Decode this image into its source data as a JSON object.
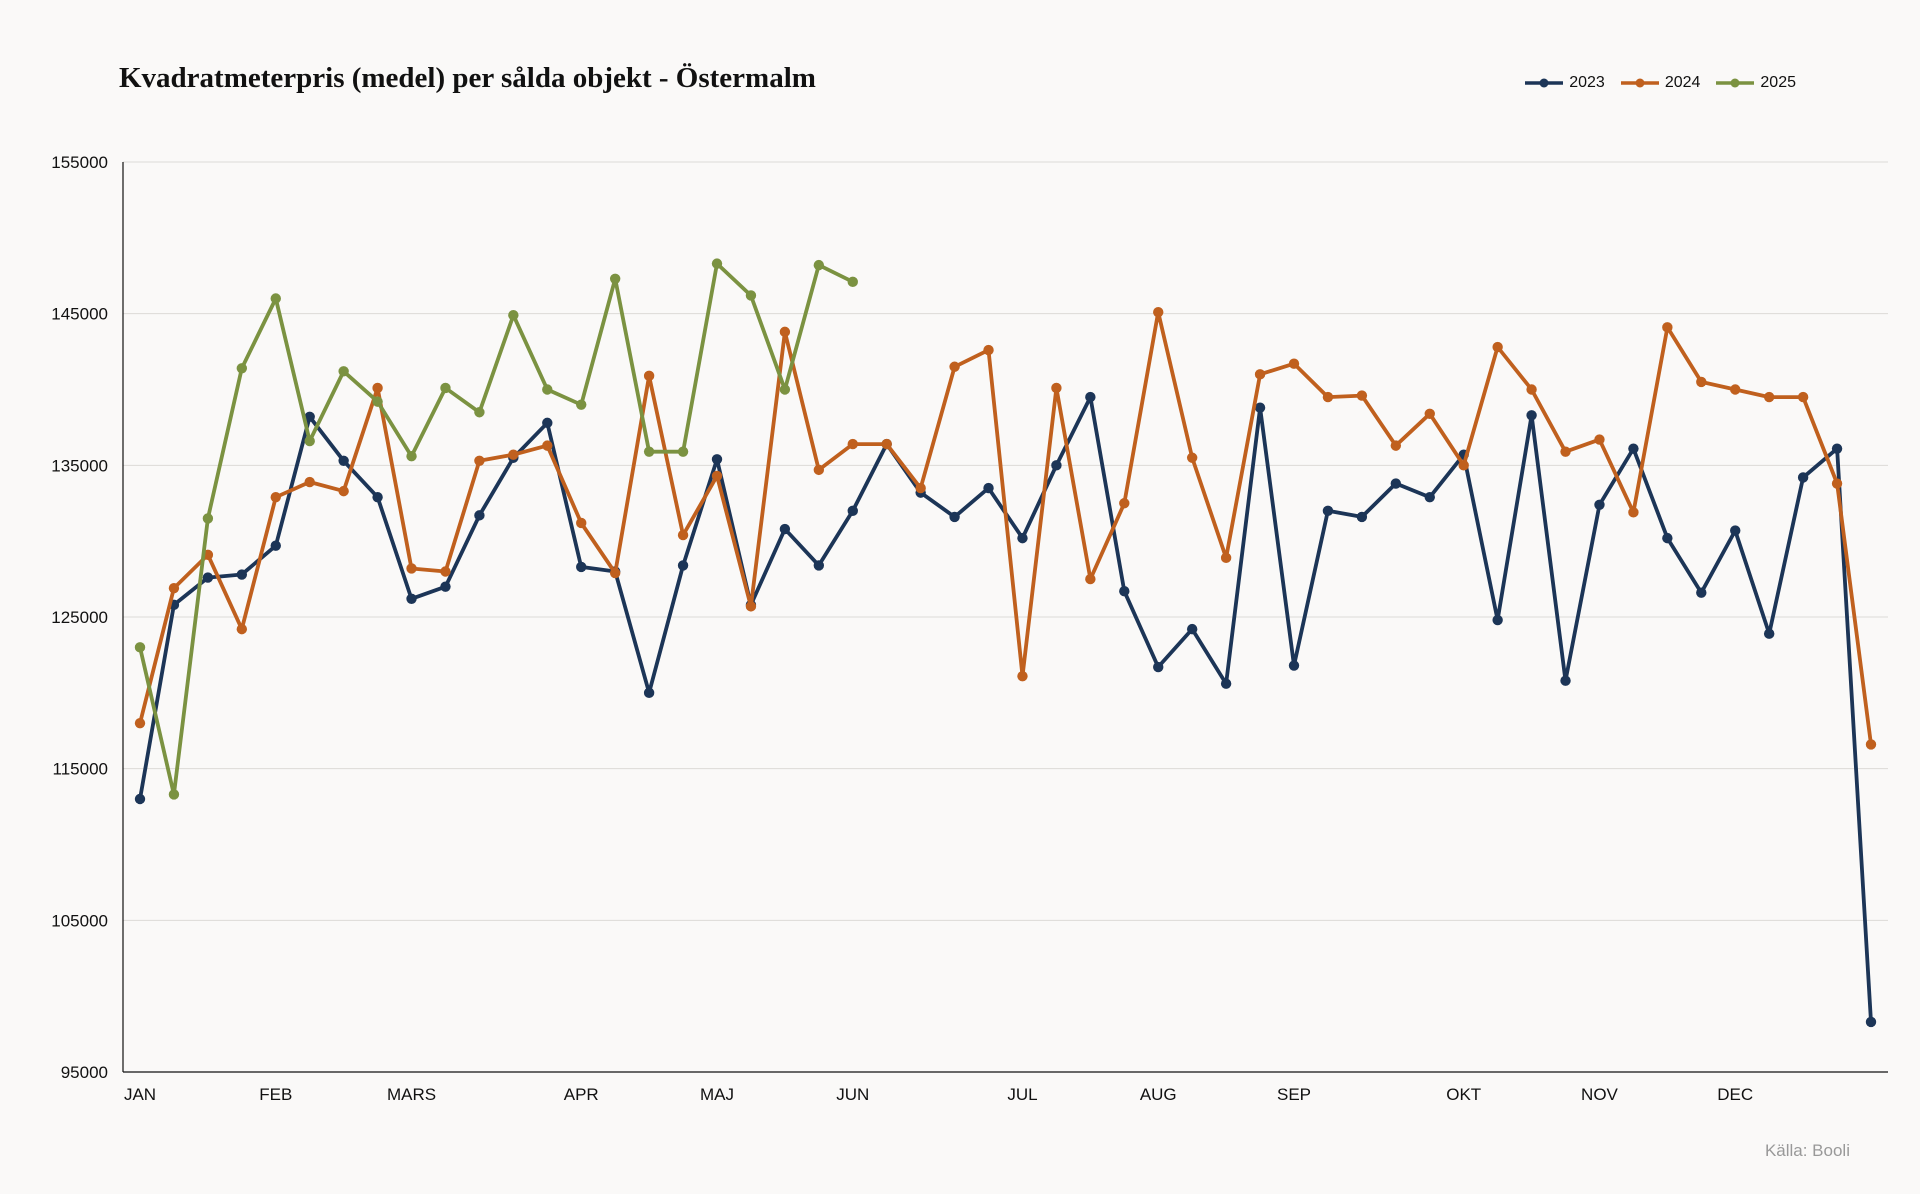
{
  "chart_data": {
    "type": "line",
    "title": "Kvadratmeterpris (medel) per sålda objekt - Östermalm",
    "source": "Källa: Booli",
    "ylim": [
      95000,
      155000
    ],
    "yticks": [
      95000,
      105000,
      115000,
      125000,
      135000,
      145000,
      155000
    ],
    "x_range": [
      0,
      51
    ],
    "month_ticks": [
      {
        "label": "JAN",
        "x": 0
      },
      {
        "label": "FEB",
        "x": 4
      },
      {
        "label": "MARS",
        "x": 8
      },
      {
        "label": "APR",
        "x": 13
      },
      {
        "label": "MAJ",
        "x": 17
      },
      {
        "label": "JUN",
        "x": 21
      },
      {
        "label": "JUL",
        "x": 26
      },
      {
        "label": "AUG",
        "x": 30
      },
      {
        "label": "SEP",
        "x": 34
      },
      {
        "label": "OKT",
        "x": 39
      },
      {
        "label": "NOV",
        "x": 43
      },
      {
        "label": "DEC",
        "x": 47
      }
    ],
    "grid": "horizontal",
    "legend_position": "top-right",
    "series": [
      {
        "name": "2023",
        "color": "#1c3557",
        "values": [
          113000,
          125800,
          127600,
          127800,
          129700,
          138200,
          135300,
          132900,
          126200,
          127000,
          131700,
          135500,
          137800,
          128300,
          128000,
          120000,
          128400,
          135400,
          125800,
          130800,
          128400,
          132000,
          136400,
          133200,
          131600,
          133500,
          130200,
          135000,
          139500,
          126700,
          121700,
          124200,
          120600,
          138800,
          121800,
          132000,
          131600,
          133800,
          132900,
          135700,
          124800,
          138300,
          120800,
          132400,
          136100,
          130200,
          126600,
          130700,
          123900,
          134200,
          136100,
          98300
        ]
      },
      {
        "name": "2024",
        "color": "#c0601e",
        "values": [
          118000,
          126900,
          129100,
          124200,
          132900,
          133900,
          133300,
          140100,
          128200,
          128000,
          135300,
          135700,
          136300,
          131200,
          127900,
          140900,
          130400,
          134300,
          125700,
          143800,
          134700,
          136400,
          136400,
          133500,
          141500,
          142600,
          121100,
          140100,
          127500,
          132500,
          145100,
          135500,
          128900,
          141000,
          141700,
          139500,
          139600,
          136300,
          138400,
          135000,
          142800,
          140000,
          135900,
          136700,
          131900,
          144100,
          140500,
          140000,
          139500,
          139500,
          133800,
          116600
        ]
      },
      {
        "name": "2025",
        "color": "#7b9241",
        "values": [
          123000,
          113300,
          131500,
          141400,
          146000,
          136600,
          141200,
          139200,
          135600,
          140100,
          138500,
          144900,
          140000,
          139000,
          147300,
          135900,
          135900,
          148300,
          146200,
          140000,
          148200,
          147100
        ]
      }
    ]
  }
}
